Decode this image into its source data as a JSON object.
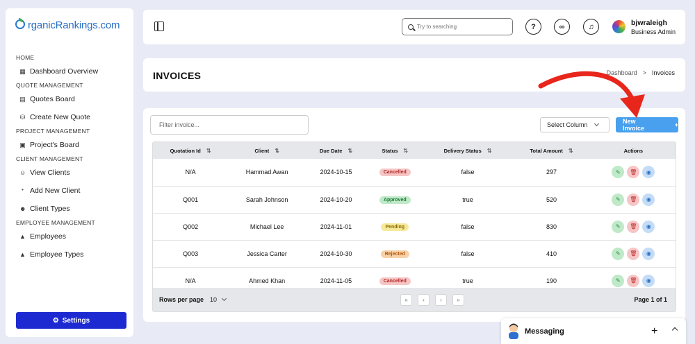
{
  "brand": {
    "logo_text": "rganicRankings.com"
  },
  "sidebar": {
    "sections": [
      {
        "heading": "HOME",
        "items": [
          {
            "label": "Dashboard Overview",
            "icon": "grid-icon"
          }
        ]
      },
      {
        "heading": "QUOTE MANAGEMENT",
        "items": [
          {
            "label": "Quotes Board",
            "icon": "document-icon"
          },
          {
            "label": "Create New Quote",
            "icon": "database-icon"
          }
        ]
      },
      {
        "heading": "PROJECT MANAGEMENT",
        "items": [
          {
            "label": "Project's Board",
            "icon": "clipboard-icon"
          }
        ]
      },
      {
        "heading": "CLIENT MANAGEMENT",
        "items": [
          {
            "label": "View Clients",
            "icon": "user-icon"
          },
          {
            "label": "Add New Client",
            "icon": "user-plus-icon"
          },
          {
            "label": "Client Types",
            "icon": "user-tag-icon"
          }
        ]
      },
      {
        "heading": "EMPLOYEE MANAGEMENT",
        "items": [
          {
            "label": "Employees",
            "icon": "person-icon"
          },
          {
            "label": "Employee Types",
            "icon": "person-icon"
          }
        ]
      }
    ],
    "settings_label": "Settings"
  },
  "header": {
    "search_placeholder": "Try to searching",
    "user_name": "bjwraleigh",
    "user_role": "Business Admin"
  },
  "page": {
    "title": "INVOICES",
    "breadcrumb": {
      "parent": "Dashboard",
      "separator": ">",
      "current": "Invoices"
    }
  },
  "toolbar": {
    "filter_placeholder": "Filter invoice...",
    "select_column_label": "Select Column",
    "new_invoice_label": "New Invoice",
    "new_invoice_plus": "+"
  },
  "table": {
    "columns": [
      "Quotation Id",
      "Client",
      "Due Date",
      "Status",
      "Delivery Status",
      "Total Amount",
      "Actions"
    ],
    "rows": [
      {
        "id": "N/A",
        "client": "Hammad Awan",
        "due": "2024-10-15",
        "status": "Cancelled",
        "delivery": "false",
        "amount": "297"
      },
      {
        "id": "Q001",
        "client": "Sarah Johnson",
        "due": "2024-10-20",
        "status": "Approved",
        "delivery": "true",
        "amount": "520"
      },
      {
        "id": "Q002",
        "client": "Michael Lee",
        "due": "2024-11-01",
        "status": "Pending",
        "delivery": "false",
        "amount": "830"
      },
      {
        "id": "Q003",
        "client": "Jessica Carter",
        "due": "2024-10-30",
        "status": "Rejected",
        "delivery": "false",
        "amount": "410"
      },
      {
        "id": "N/A",
        "client": "Ahmed Khan",
        "due": "2024-11-05",
        "status": "Cancelled",
        "delivery": "true",
        "amount": "190"
      }
    ],
    "footer": {
      "rows_per_page_label": "Rows per page",
      "rows_per_page_value": "10",
      "page_info": "Page 1 of 1"
    }
  },
  "messaging": {
    "label": "Messaging",
    "plus": "+"
  },
  "colors": {
    "primary": "#1e2ad1",
    "accent": "#48a0ee",
    "arrow": "#e8261c"
  }
}
